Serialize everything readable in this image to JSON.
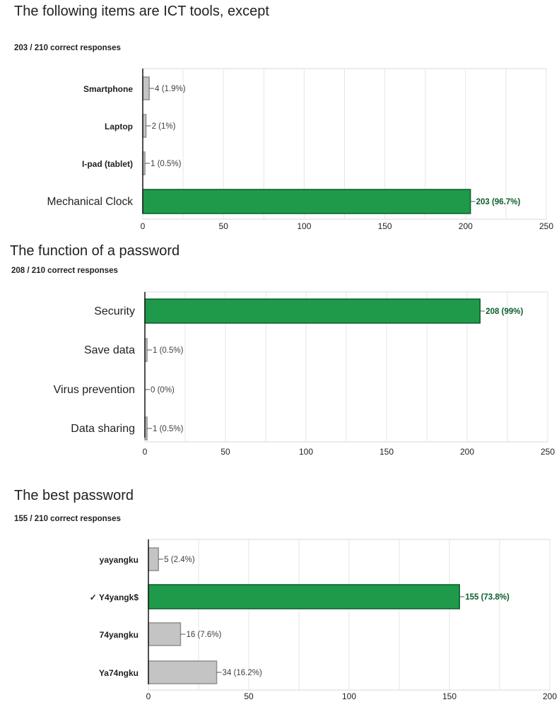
{
  "questions": [
    {
      "title": "The following items are ICT tools, except",
      "subtitle": "203 / 210 correct responses",
      "chart_data": {
        "type": "bar",
        "orientation": "horizontal",
        "categories": [
          "Smartphone",
          "Laptop",
          "I-pad (tablet)",
          "Mechanical Clock"
        ],
        "values": [
          4,
          2,
          1,
          203
        ],
        "labels": [
          "4 (1.9%)",
          "2 (1%)",
          "1 (0.5%)",
          "203 (96.7%)"
        ],
        "correct": [
          false,
          false,
          false,
          true
        ],
        "xlim": [
          0,
          250
        ],
        "ticks": [
          0,
          50,
          100,
          150,
          200,
          250
        ],
        "grid": true
      }
    },
    {
      "title": "The function of a password",
      "subtitle": "208 / 210 correct responses",
      "chart_data": {
        "type": "bar",
        "orientation": "horizontal",
        "categories": [
          "Security",
          "Save data",
          "Virus prevention",
          "Data sharing"
        ],
        "values": [
          208,
          1,
          0,
          1
        ],
        "labels": [
          "208 (99%)",
          "1 (0.5%)",
          "0 (0%)",
          "1 (0.5%)"
        ],
        "correct": [
          true,
          false,
          false,
          false
        ],
        "xlim": [
          0,
          250
        ],
        "ticks": [
          0,
          50,
          100,
          150,
          200,
          250
        ],
        "grid": true
      }
    },
    {
      "title": "The best password",
      "subtitle": "155 / 210 correct responses",
      "chart_data": {
        "type": "bar",
        "orientation": "horizontal",
        "categories": [
          "yayangku",
          "✓ Y4yangk$",
          "74yangku",
          "Ya74ngku"
        ],
        "values": [
          5,
          155,
          16,
          34
        ],
        "labels": [
          "5 (2.4%)",
          "155 (73.8%)",
          "16 (7.6%)",
          "34 (16.2%)"
        ],
        "correct": [
          false,
          true,
          false,
          false
        ],
        "xlim": [
          0,
          200
        ],
        "ticks": [
          0,
          50,
          100,
          150,
          200
        ],
        "grid": true
      }
    }
  ],
  "colors": {
    "correct_bar": "#1e9a4a",
    "correct_bar_edge": "#0a5c28",
    "incorrect_bar": "#c4c4c4",
    "incorrect_bar_edge": "#8e8e8e",
    "grid": "#e6e6e6",
    "frame": "#dadada"
  }
}
